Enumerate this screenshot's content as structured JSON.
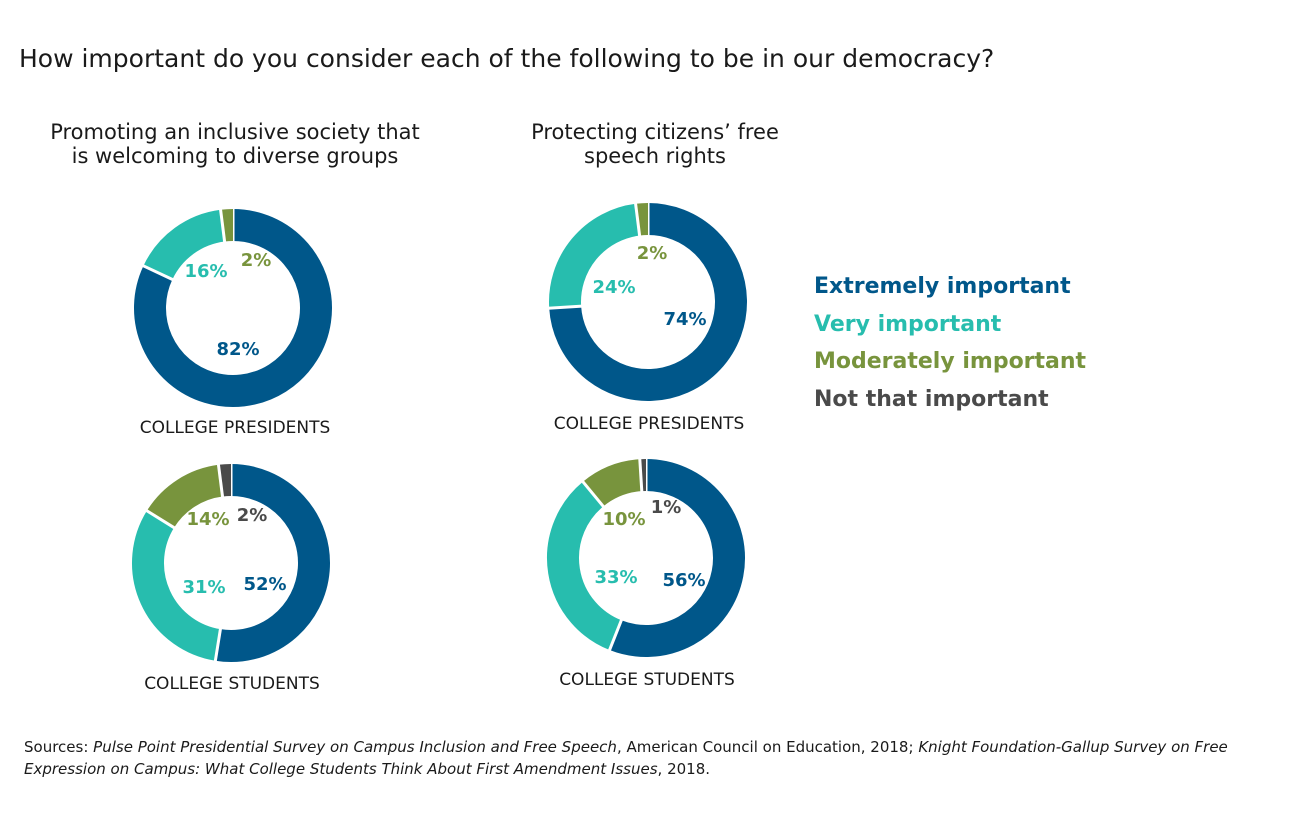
{
  "title": "How important do you consider each of the following to be in our democracy?",
  "legend": [
    {
      "label": "Extremely important",
      "color": "#00578a"
    },
    {
      "label": "Very important",
      "color": "#27bdae"
    },
    {
      "label": "Moderately important",
      "color": "#78943d"
    },
    {
      "label": "Not that important",
      "color": "#4a4a4a"
    }
  ],
  "chart_data": [
    {
      "type": "pie",
      "title": "Promoting an inclusive society that\n is welcoming to diverse groups",
      "group": "COLLEGE PRESIDENTS",
      "categories": [
        "Extremely important",
        "Very important",
        "Moderately important"
      ],
      "values": [
        82,
        16,
        2
      ],
      "labels": [
        "82%",
        "16%",
        "2%"
      ]
    },
    {
      "type": "pie",
      "title": "Promoting an inclusive society that\n is welcoming to diverse groups",
      "group": "COLLEGE STUDENTS",
      "categories": [
        "Extremely important",
        "Very important",
        "Moderately important",
        "Not that important"
      ],
      "values": [
        52,
        31,
        14,
        2
      ],
      "labels": [
        "52%",
        "31%",
        "14%",
        "2%"
      ]
    },
    {
      "type": "pie",
      "title": "Protecting citizens’ free\n speech rights",
      "group": "COLLEGE PRESIDENTS",
      "categories": [
        "Extremely important",
        "Very important",
        "Moderately important"
      ],
      "values": [
        74,
        24,
        2
      ],
      "labels": [
        "74%",
        "24%",
        "2%"
      ]
    },
    {
      "type": "pie",
      "title": "Protecting citizens’ free\n speech rights",
      "group": "COLLEGE STUDENTS",
      "categories": [
        "Extremely important",
        "Very important",
        "Moderately important",
        "Not that important"
      ],
      "values": [
        56,
        33,
        10,
        1
      ],
      "labels": [
        "56%",
        "33%",
        "10%",
        "1%"
      ]
    }
  ],
  "source": {
    "prefix": "Sources: ",
    "italic1": "Pulse Point Presidential Survey on Campus Inclusion and Free Speech",
    "mid": ", American Council on Education, 2018; ",
    "italic2": "Knight Foundation-Gallup Survey on Free Expression on Campus: What College Students Think About First Amendment Issues",
    "suffix": ", 2018."
  }
}
